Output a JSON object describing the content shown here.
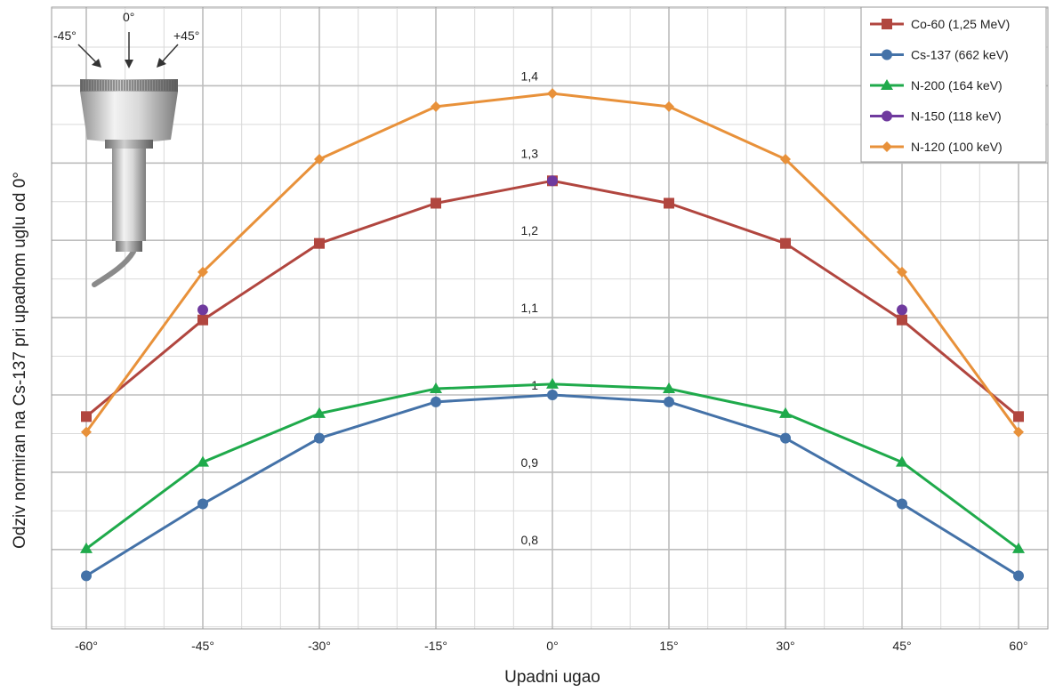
{
  "chart_data": {
    "type": "line",
    "xlabel": "Upadni ugao",
    "ylabel": "Odziv normiran na Cs-137 pri upadnom uglu od 0°",
    "x": [
      -60,
      -45,
      -30,
      -15,
      0,
      15,
      30,
      45,
      60
    ],
    "x_tick_labels": [
      "-60°",
      "-45°",
      "-30°",
      "-15°",
      "0°",
      "15°",
      "30°",
      "45°",
      "60°"
    ],
    "y_tick_labels": [
      "0,8",
      "0,9",
      "1",
      "1,1",
      "1,2",
      "1,3",
      "1,4"
    ],
    "y_ticks": [
      0.8,
      0.9,
      1.0,
      1.1,
      1.2,
      1.3,
      1.4
    ],
    "xlim": [
      -65,
      65
    ],
    "ylim": [
      0.69,
      1.5
    ],
    "grid": true,
    "legend_position": "top-right",
    "series": [
      {
        "name": "Co-60 (1,25 MeV)",
        "color": "#b1463f",
        "marker": "square",
        "values": [
          0.972,
          1.097,
          1.196,
          1.248,
          1.277,
          1.248,
          1.196,
          1.097,
          0.972
        ]
      },
      {
        "name": "Cs-137 (662 keV)",
        "color": "#4472a8",
        "marker": "circle",
        "values": [
          0.766,
          0.859,
          0.944,
          0.991,
          1.0,
          0.991,
          0.944,
          0.859,
          0.766
        ]
      },
      {
        "name": "N-200 (164 keV)",
        "color": "#1faa4b",
        "marker": "triangle",
        "values": [
          0.801,
          0.913,
          0.976,
          1.008,
          1.014,
          1.008,
          0.976,
          0.913,
          0.801
        ]
      },
      {
        "name": "N-150 (118 keV)",
        "color": "#6f3a9e",
        "marker": "circle",
        "x": [
          -45,
          0,
          45
        ],
        "values": [
          1.11,
          1.277,
          1.11
        ]
      },
      {
        "name": "N-120 (100 keV)",
        "color": "#e8913a",
        "marker": "diamond",
        "values": [
          0.952,
          1.159,
          1.305,
          1.373,
          1.39,
          1.373,
          1.305,
          1.159,
          0.952
        ]
      }
    ]
  },
  "probe": {
    "labels": [
      "-45°",
      "0°",
      "+45°"
    ]
  }
}
